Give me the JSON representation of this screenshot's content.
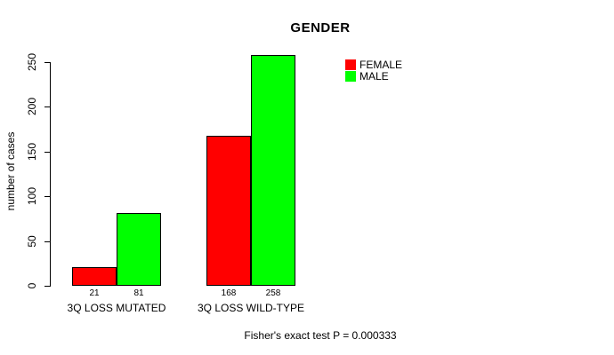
{
  "chart_data": {
    "type": "bar",
    "title": "GENDER",
    "xlabel": "",
    "ylabel": "number of cases",
    "categories": [
      "3Q LOSS MUTATED",
      "3Q LOSS WILD-TYPE"
    ],
    "series": [
      {
        "name": "FEMALE",
        "color": "#ff0000",
        "values": [
          21,
          168
        ]
      },
      {
        "name": "MALE",
        "color": "#00ff00",
        "values": [
          81,
          258
        ]
      }
    ],
    "ylim": [
      0,
      250
    ],
    "yticks": [
      0,
      50,
      100,
      150,
      200,
      250
    ],
    "grid": false,
    "bar_value_labels_shown": true,
    "legend_position": "top-right",
    "annotation": "Fisher's exact test P = 0.000333"
  },
  "colors": {
    "background": "#ffffff",
    "text": "#000000",
    "bar_border": "#000000",
    "female": "#ff0000",
    "male": "#00ff00"
  }
}
